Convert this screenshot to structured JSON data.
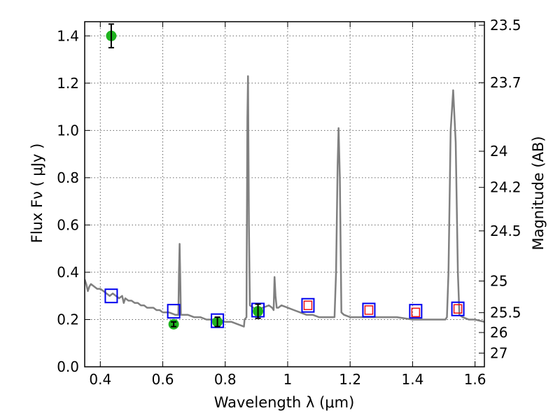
{
  "chart_data": {
    "type": "line",
    "title": "",
    "xlabel": "Wavelength  λ (μm)",
    "ylabel": "Flux  Fν  ( μJy )",
    "ylabel2": "Magnitude (AB)",
    "xlim": [
      0.35,
      1.63
    ],
    "ylim": [
      0,
      1.46
    ],
    "x_ticks": [
      "0.4",
      "0.6",
      "0.8",
      "1",
      "1.2",
      "1.4",
      "1.6"
    ],
    "x_tick_values": [
      0.4,
      0.6,
      0.8,
      1.0,
      1.2,
      1.4,
      1.6
    ],
    "y_ticks": [
      "0.0",
      "0.2",
      "0.4",
      "0.6",
      "0.8",
      "1.0",
      "1.2",
      "1.4"
    ],
    "y_tick_values": [
      0,
      0.2,
      0.4,
      0.6,
      0.8,
      1.0,
      1.2,
      1.4
    ],
    "mag_ticks": [
      {
        "label": "23.5",
        "flux": 1.445
      },
      {
        "label": "23.7",
        "flux": 1.202
      },
      {
        "label": "24",
        "flux": 0.912
      },
      {
        "label": "24.2",
        "flux": 0.759
      },
      {
        "label": "24.5",
        "flux": 0.575
      },
      {
        "label": "25",
        "flux": 0.363
      },
      {
        "label": "25.5",
        "flux": 0.229
      },
      {
        "label": "26",
        "flux": 0.145
      },
      {
        "label": "27",
        "flux": 0.058
      }
    ],
    "grid": true,
    "colors": {
      "model": "#808080",
      "observed": "#1fb31f",
      "model_box": "#0000ee",
      "model_inner": "#ee1111"
    },
    "series": [
      {
        "kind": "spectrum",
        "points": [
          [
            0.35,
            0.37
          ],
          [
            0.355,
            0.35
          ],
          [
            0.36,
            0.32
          ],
          [
            0.365,
            0.34
          ],
          [
            0.37,
            0.35
          ],
          [
            0.38,
            0.34
          ],
          [
            0.39,
            0.33
          ],
          [
            0.4,
            0.33
          ],
          [
            0.41,
            0.32
          ],
          [
            0.42,
            0.31
          ],
          [
            0.43,
            0.3
          ],
          [
            0.44,
            0.31
          ],
          [
            0.45,
            0.3
          ],
          [
            0.46,
            0.29
          ],
          [
            0.47,
            0.3
          ],
          [
            0.475,
            0.27
          ],
          [
            0.48,
            0.29
          ],
          [
            0.49,
            0.28
          ],
          [
            0.5,
            0.28
          ],
          [
            0.51,
            0.27
          ],
          [
            0.52,
            0.27
          ],
          [
            0.53,
            0.26
          ],
          [
            0.54,
            0.26
          ],
          [
            0.55,
            0.25
          ],
          [
            0.56,
            0.25
          ],
          [
            0.57,
            0.25
          ],
          [
            0.58,
            0.24
          ],
          [
            0.59,
            0.24
          ],
          [
            0.6,
            0.23
          ],
          [
            0.62,
            0.23
          ],
          [
            0.64,
            0.22
          ],
          [
            0.65,
            0.22
          ],
          [
            0.652,
            0.4
          ],
          [
            0.654,
            0.52
          ],
          [
            0.656,
            0.38
          ],
          [
            0.658,
            0.22
          ],
          [
            0.68,
            0.22
          ],
          [
            0.7,
            0.21
          ],
          [
            0.72,
            0.21
          ],
          [
            0.74,
            0.2
          ],
          [
            0.76,
            0.2
          ],
          [
            0.78,
            0.2
          ],
          [
            0.8,
            0.19
          ],
          [
            0.82,
            0.19
          ],
          [
            0.84,
            0.18
          ],
          [
            0.86,
            0.17
          ],
          [
            0.862,
            0.2
          ],
          [
            0.868,
            0.21
          ],
          [
            0.871,
            1.05
          ],
          [
            0.873,
            1.23
          ],
          [
            0.876,
            0.6
          ],
          [
            0.879,
            0.26
          ],
          [
            0.89,
            0.25
          ],
          [
            0.9,
            0.24
          ],
          [
            0.92,
            0.25
          ],
          [
            0.94,
            0.26
          ],
          [
            0.95,
            0.25
          ],
          [
            0.955,
            0.24
          ],
          [
            0.958,
            0.38
          ],
          [
            0.961,
            0.3
          ],
          [
            0.965,
            0.25
          ],
          [
            0.97,
            0.25
          ],
          [
            0.98,
            0.26
          ],
          [
            1.0,
            0.25
          ],
          [
            1.02,
            0.24
          ],
          [
            1.04,
            0.23
          ],
          [
            1.06,
            0.22
          ],
          [
            1.08,
            0.22
          ],
          [
            1.1,
            0.21
          ],
          [
            1.12,
            0.21
          ],
          [
            1.14,
            0.21
          ],
          [
            1.15,
            0.21
          ],
          [
            1.155,
            0.4
          ],
          [
            1.16,
            0.85
          ],
          [
            1.163,
            1.01
          ],
          [
            1.167,
            0.8
          ],
          [
            1.172,
            0.23
          ],
          [
            1.18,
            0.22
          ],
          [
            1.2,
            0.21
          ],
          [
            1.25,
            0.21
          ],
          [
            1.3,
            0.21
          ],
          [
            1.35,
            0.21
          ],
          [
            1.4,
            0.2
          ],
          [
            1.45,
            0.2
          ],
          [
            1.5,
            0.2
          ],
          [
            1.505,
            0.2
          ],
          [
            1.51,
            0.21
          ],
          [
            1.515,
            0.4
          ],
          [
            1.522,
            1.0
          ],
          [
            1.53,
            1.17
          ],
          [
            1.538,
            0.95
          ],
          [
            1.545,
            0.4
          ],
          [
            1.55,
            0.22
          ],
          [
            1.56,
            0.21
          ],
          [
            1.58,
            0.2
          ],
          [
            1.6,
            0.2
          ],
          [
            1.63,
            0.19
          ]
        ]
      },
      {
        "kind": "model_photometry",
        "points": [
          [
            0.435,
            0.3
          ],
          [
            0.635,
            0.235
          ],
          [
            0.775,
            0.195
          ],
          [
            0.905,
            0.24
          ],
          [
            1.065,
            0.26
          ],
          [
            1.26,
            0.24
          ],
          [
            1.41,
            0.235
          ],
          [
            1.545,
            0.245
          ]
        ],
        "inner_markers": [
          [
            1.065,
            0.26
          ],
          [
            1.26,
            0.24
          ],
          [
            1.41,
            0.23
          ],
          [
            1.545,
            0.245
          ]
        ]
      },
      {
        "kind": "observed_photometry",
        "points": [
          [
            0.435,
            1.4,
            0.05
          ],
          [
            0.635,
            0.18,
            0.01
          ],
          [
            0.775,
            0.19,
            0.02
          ],
          [
            0.905,
            0.235,
            0.03
          ]
        ]
      }
    ]
  }
}
